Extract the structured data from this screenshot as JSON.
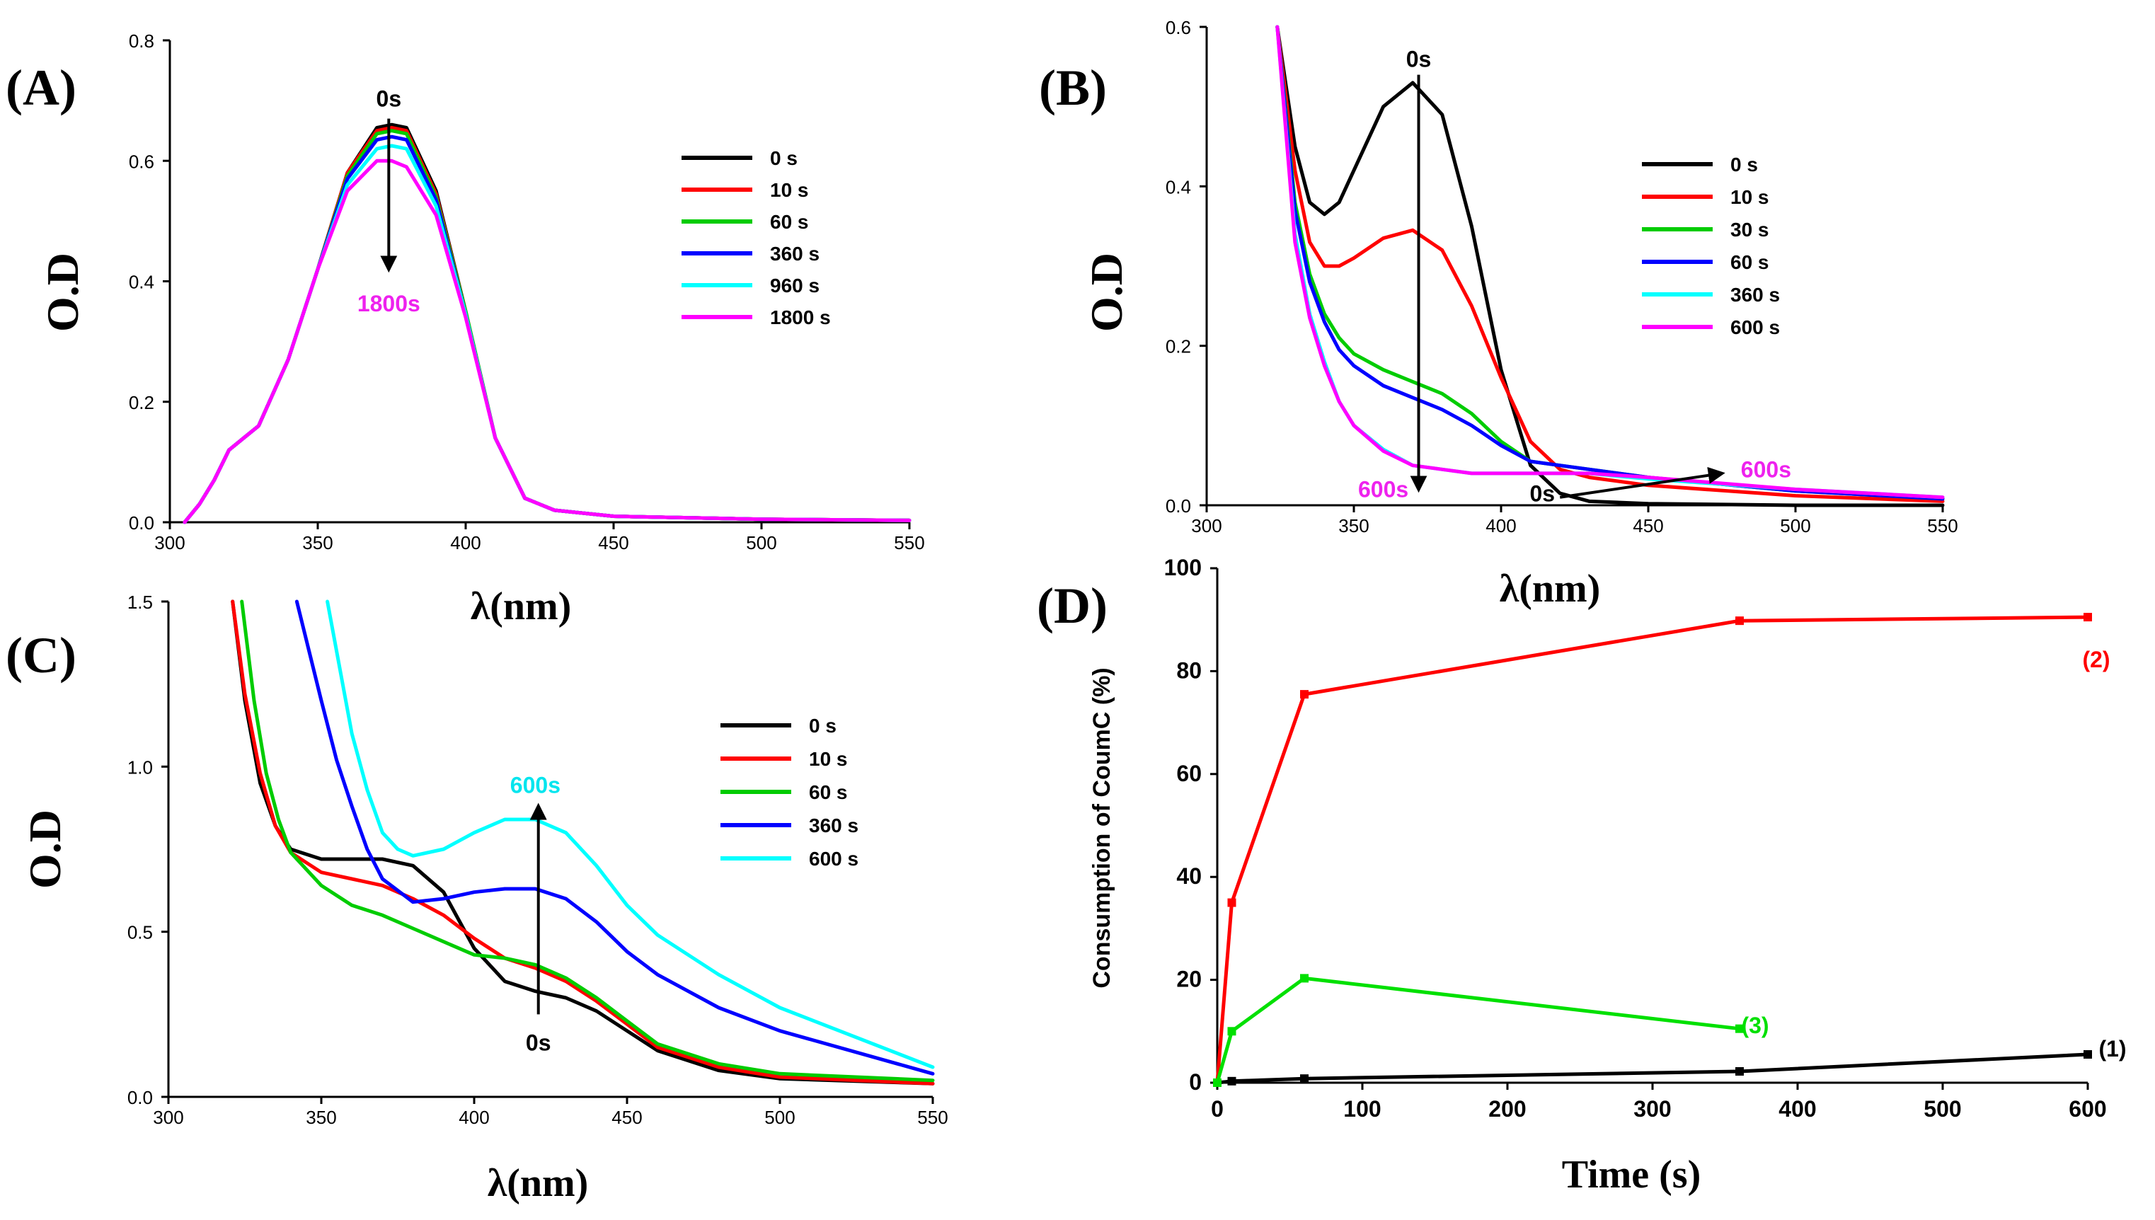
{
  "chart_data": [
    {
      "id": "A",
      "type": "line",
      "panel_label": "(A)",
      "xlabel": "λ(nm)",
      "ylabel": "O.D",
      "xlim": [
        300,
        550
      ],
      "ylim": [
        0,
        0.8
      ],
      "xticks": [
        300,
        350,
        400,
        450,
        500,
        550
      ],
      "yticks": [
        0.0,
        0.2,
        0.4,
        0.6,
        0.8
      ],
      "ytick_labels": [
        "0.0",
        "0.2",
        "0.4",
        "0.6",
        "0.8"
      ],
      "annotations": [
        {
          "text": "0s",
          "color": "#000000",
          "x": 374,
          "y": 0.69
        },
        {
          "text": "1800s",
          "color": "#ee22ee",
          "x": 374,
          "y": 0.35
        }
      ],
      "arrows": [
        {
          "from": [
            374,
            0.67
          ],
          "to": [
            374,
            0.42
          ],
          "color": "#000000"
        }
      ],
      "series": [
        {
          "name": "0 s",
          "color": "#000000",
          "x": [
            305,
            310,
            315,
            320,
            325,
            330,
            340,
            350,
            360,
            370,
            375,
            380,
            390,
            400,
            410,
            420,
            430,
            450,
            500,
            550
          ],
          "y": [
            0.0,
            0.03,
            0.07,
            0.12,
            0.14,
            0.16,
            0.27,
            0.42,
            0.58,
            0.655,
            0.66,
            0.655,
            0.55,
            0.35,
            0.14,
            0.04,
            0.02,
            0.01,
            0.005,
            0.003
          ]
        },
        {
          "name": "10 s",
          "color": "#ff0000",
          "x": [
            305,
            310,
            315,
            320,
            325,
            330,
            340,
            350,
            360,
            370,
            375,
            380,
            390,
            400,
            410,
            420,
            430,
            450,
            500,
            550
          ],
          "y": [
            0.0,
            0.03,
            0.07,
            0.12,
            0.14,
            0.16,
            0.27,
            0.42,
            0.58,
            0.65,
            0.655,
            0.65,
            0.545,
            0.35,
            0.14,
            0.04,
            0.02,
            0.01,
            0.005,
            0.003
          ]
        },
        {
          "name": "60 s",
          "color": "#00cc00",
          "x": [
            305,
            310,
            315,
            320,
            325,
            330,
            340,
            350,
            360,
            370,
            375,
            380,
            390,
            400,
            410,
            420,
            430,
            450,
            500,
            550
          ],
          "y": [
            0.0,
            0.03,
            0.07,
            0.12,
            0.14,
            0.16,
            0.27,
            0.42,
            0.575,
            0.645,
            0.65,
            0.645,
            0.54,
            0.35,
            0.14,
            0.04,
            0.02,
            0.01,
            0.005,
            0.003
          ]
        },
        {
          "name": "360 s",
          "color": "#0000ff",
          "x": [
            305,
            310,
            315,
            320,
            325,
            330,
            340,
            350,
            360,
            370,
            375,
            380,
            390,
            400,
            410,
            420,
            430,
            450,
            500,
            550
          ],
          "y": [
            0.0,
            0.03,
            0.07,
            0.12,
            0.14,
            0.16,
            0.27,
            0.42,
            0.57,
            0.635,
            0.64,
            0.635,
            0.535,
            0.345,
            0.14,
            0.04,
            0.02,
            0.01,
            0.005,
            0.003
          ]
        },
        {
          "name": "960 s",
          "color": "#00ffff",
          "x": [
            305,
            310,
            315,
            320,
            325,
            330,
            340,
            350,
            360,
            370,
            375,
            380,
            390,
            400,
            410,
            420,
            430,
            450,
            500,
            550
          ],
          "y": [
            0.0,
            0.03,
            0.07,
            0.12,
            0.14,
            0.16,
            0.27,
            0.42,
            0.56,
            0.62,
            0.625,
            0.62,
            0.525,
            0.345,
            0.14,
            0.04,
            0.02,
            0.01,
            0.005,
            0.003
          ]
        },
        {
          "name": "1800 s",
          "color": "#ff00ff",
          "x": [
            305,
            310,
            315,
            320,
            325,
            330,
            340,
            350,
            360,
            370,
            375,
            380,
            390,
            400,
            410,
            420,
            430,
            450,
            500,
            550
          ],
          "y": [
            0.0,
            0.03,
            0.07,
            0.12,
            0.14,
            0.16,
            0.27,
            0.42,
            0.55,
            0.6,
            0.6,
            0.59,
            0.51,
            0.34,
            0.14,
            0.04,
            0.02,
            0.01,
            0.005,
            0.003
          ]
        }
      ]
    },
    {
      "id": "B",
      "type": "line",
      "panel_label": "(B)",
      "xlabel": "λ(nm)",
      "ylabel": "O.D",
      "xlim": [
        300,
        550
      ],
      "ylim": [
        0,
        0.6
      ],
      "xticks": [
        300,
        350,
        400,
        450,
        500,
        550
      ],
      "yticks": [
        0.0,
        0.2,
        0.4,
        0.6
      ],
      "ytick_labels": [
        "0.0",
        "0.2",
        "0.4",
        "0.6"
      ],
      "annotations": [
        {
          "text": "0s",
          "color": "#000000",
          "x": 372,
          "y": 0.55
        },
        {
          "text": "600s",
          "color": "#ee22ee",
          "x": 360,
          "y": 0.01
        },
        {
          "text": "0s",
          "color": "#000000",
          "x": 414,
          "y": 0.005
        },
        {
          "text": "600s",
          "color": "#ee22ee",
          "x": 490,
          "y": 0.035
        }
      ],
      "arrows": [
        {
          "from": [
            372,
            0.54
          ],
          "to": [
            372,
            0.02
          ],
          "color": "#000000"
        },
        {
          "from": [
            420,
            0.01
          ],
          "to": [
            475,
            0.04
          ],
          "color": "#000000"
        }
      ],
      "series": [
        {
          "name": "0 s",
          "color": "#000000",
          "x": [
            324,
            330,
            335,
            340,
            345,
            350,
            360,
            370,
            380,
            390,
            400,
            410,
            420,
            430,
            450,
            500,
            550
          ],
          "y": [
            0.6,
            0.45,
            0.38,
            0.365,
            0.38,
            0.42,
            0.5,
            0.53,
            0.49,
            0.35,
            0.17,
            0.05,
            0.015,
            0.005,
            0.002,
            0.0,
            0.0
          ]
        },
        {
          "name": "10 s",
          "color": "#ff0000",
          "x": [
            324,
            330,
            335,
            340,
            345,
            350,
            360,
            370,
            380,
            390,
            400,
            410,
            420,
            430,
            450,
            500,
            550
          ],
          "y": [
            0.6,
            0.42,
            0.33,
            0.3,
            0.3,
            0.31,
            0.335,
            0.345,
            0.32,
            0.25,
            0.16,
            0.08,
            0.045,
            0.035,
            0.025,
            0.012,
            0.005
          ]
        },
        {
          "name": "30 s",
          "color": "#00cc00",
          "x": [
            324,
            330,
            335,
            340,
            345,
            350,
            360,
            370,
            380,
            390,
            400,
            410,
            420,
            430,
            450,
            500,
            550
          ],
          "y": [
            0.6,
            0.38,
            0.29,
            0.24,
            0.21,
            0.19,
            0.17,
            0.155,
            0.14,
            0.115,
            0.08,
            0.055,
            0.05,
            0.045,
            0.035,
            0.018,
            0.008
          ]
        },
        {
          "name": "60 s",
          "color": "#0000ff",
          "x": [
            324,
            330,
            335,
            340,
            345,
            350,
            360,
            370,
            380,
            390,
            400,
            410,
            420,
            430,
            450,
            500,
            550
          ],
          "y": [
            0.6,
            0.37,
            0.28,
            0.23,
            0.195,
            0.175,
            0.15,
            0.135,
            0.12,
            0.1,
            0.075,
            0.055,
            0.05,
            0.045,
            0.035,
            0.018,
            0.008
          ]
        },
        {
          "name": "360 s",
          "color": "#00ffff",
          "x": [
            324,
            330,
            335,
            340,
            345,
            350,
            360,
            370,
            380,
            390,
            400,
            410,
            420,
            430,
            450,
            500,
            550
          ],
          "y": [
            0.6,
            0.34,
            0.24,
            0.18,
            0.13,
            0.1,
            0.07,
            0.05,
            0.045,
            0.04,
            0.04,
            0.04,
            0.04,
            0.04,
            0.033,
            0.02,
            0.01
          ]
        },
        {
          "name": "600 s",
          "color": "#ff00ff",
          "x": [
            324,
            330,
            335,
            340,
            345,
            350,
            360,
            370,
            380,
            390,
            400,
            410,
            420,
            430,
            450,
            500,
            550
          ],
          "y": [
            0.6,
            0.33,
            0.235,
            0.175,
            0.13,
            0.1,
            0.068,
            0.05,
            0.045,
            0.04,
            0.04,
            0.04,
            0.04,
            0.04,
            0.035,
            0.02,
            0.01
          ]
        }
      ]
    },
    {
      "id": "C",
      "type": "line",
      "panel_label": "(C)",
      "xlabel": "λ(nm)",
      "ylabel": "O.D",
      "xlim": [
        300,
        550
      ],
      "ylim": [
        0,
        1.5
      ],
      "xticks": [
        300,
        350,
        400,
        450,
        500,
        550
      ],
      "yticks": [
        0.0,
        0.5,
        1.0,
        1.5
      ],
      "ytick_labels": [
        "0.0",
        "0.5",
        "1.0",
        "1.5"
      ],
      "annotations": [
        {
          "text": "600s",
          "color": "#00e5ee",
          "x": 420,
          "y": 0.92
        },
        {
          "text": "0s",
          "color": "#000000",
          "x": 421,
          "y": 0.14
        }
      ],
      "arrows": [
        {
          "from": [
            421,
            0.25
          ],
          "to": [
            421,
            0.88
          ],
          "color": "#000000"
        }
      ],
      "series": [
        {
          "name": "0 s",
          "color": "#000000",
          "x": [
            321,
            325,
            330,
            335,
            340,
            350,
            360,
            370,
            380,
            390,
            400,
            410,
            420,
            430,
            440,
            450,
            460,
            480,
            500,
            550
          ],
          "y": [
            1.5,
            1.2,
            0.95,
            0.82,
            0.75,
            0.72,
            0.72,
            0.72,
            0.7,
            0.62,
            0.45,
            0.35,
            0.32,
            0.3,
            0.26,
            0.2,
            0.14,
            0.08,
            0.055,
            0.04
          ]
        },
        {
          "name": "10 s",
          "color": "#ff0000",
          "x": [
            321,
            325,
            330,
            335,
            340,
            350,
            360,
            370,
            380,
            390,
            400,
            410,
            420,
            430,
            440,
            450,
            460,
            480,
            500,
            550
          ],
          "y": [
            1.5,
            1.22,
            0.98,
            0.82,
            0.74,
            0.68,
            0.66,
            0.64,
            0.6,
            0.55,
            0.48,
            0.42,
            0.39,
            0.35,
            0.29,
            0.22,
            0.15,
            0.09,
            0.06,
            0.04
          ]
        },
        {
          "name": "60 s",
          "color": "#00cc00",
          "x": [
            324,
            328,
            332,
            336,
            340,
            350,
            360,
            370,
            380,
            390,
            400,
            410,
            420,
            430,
            440,
            450,
            460,
            480,
            500,
            550
          ],
          "y": [
            1.5,
            1.2,
            0.98,
            0.84,
            0.74,
            0.64,
            0.58,
            0.55,
            0.51,
            0.47,
            0.43,
            0.42,
            0.4,
            0.36,
            0.3,
            0.23,
            0.16,
            0.1,
            0.07,
            0.05
          ]
        },
        {
          "name": "360 s",
          "color": "#0000ff",
          "x": [
            342,
            346,
            350,
            355,
            360,
            365,
            370,
            380,
            390,
            400,
            410,
            420,
            430,
            440,
            450,
            460,
            480,
            500,
            550
          ],
          "y": [
            1.5,
            1.35,
            1.2,
            1.02,
            0.88,
            0.75,
            0.66,
            0.59,
            0.6,
            0.62,
            0.63,
            0.63,
            0.6,
            0.53,
            0.44,
            0.37,
            0.27,
            0.2,
            0.07
          ]
        },
        {
          "name": "600 s",
          "color": "#00ffff",
          "x": [
            352,
            356,
            360,
            365,
            370,
            375,
            380,
            390,
            400,
            410,
            420,
            430,
            440,
            450,
            460,
            480,
            500,
            550
          ],
          "y": [
            1.5,
            1.3,
            1.1,
            0.93,
            0.8,
            0.75,
            0.73,
            0.75,
            0.8,
            0.84,
            0.84,
            0.8,
            0.7,
            0.58,
            0.49,
            0.37,
            0.27,
            0.09
          ]
        }
      ]
    },
    {
      "id": "D",
      "type": "line",
      "panel_label": "(D)",
      "xlabel": "Time (s)",
      "ylabel": "Consumption of CoumC (%)",
      "xlim": [
        0,
        600
      ],
      "ylim": [
        0,
        100
      ],
      "xticks": [
        0,
        100,
        200,
        300,
        400,
        500,
        600
      ],
      "yticks": [
        0,
        20,
        40,
        60,
        80,
        100
      ],
      "ytick_labels": [
        "0",
        "20",
        "40",
        "60",
        "80",
        "100"
      ],
      "series": [
        {
          "name": "(1)",
          "color": "#000000",
          "x": [
            0,
            10,
            60,
            360,
            600
          ],
          "y": [
            0,
            0.3,
            0.8,
            2.2,
            5.5
          ]
        },
        {
          "name": "(2)",
          "color": "#ff0000",
          "x": [
            0,
            10,
            60,
            360,
            600
          ],
          "y": [
            0,
            35,
            75.5,
            89.8,
            90.5
          ]
        },
        {
          "name": "(3)",
          "color": "#00e000",
          "x": [
            0,
            10,
            60,
            360
          ],
          "y": [
            0,
            10,
            20.3,
            10.5
          ]
        }
      ]
    }
  ]
}
